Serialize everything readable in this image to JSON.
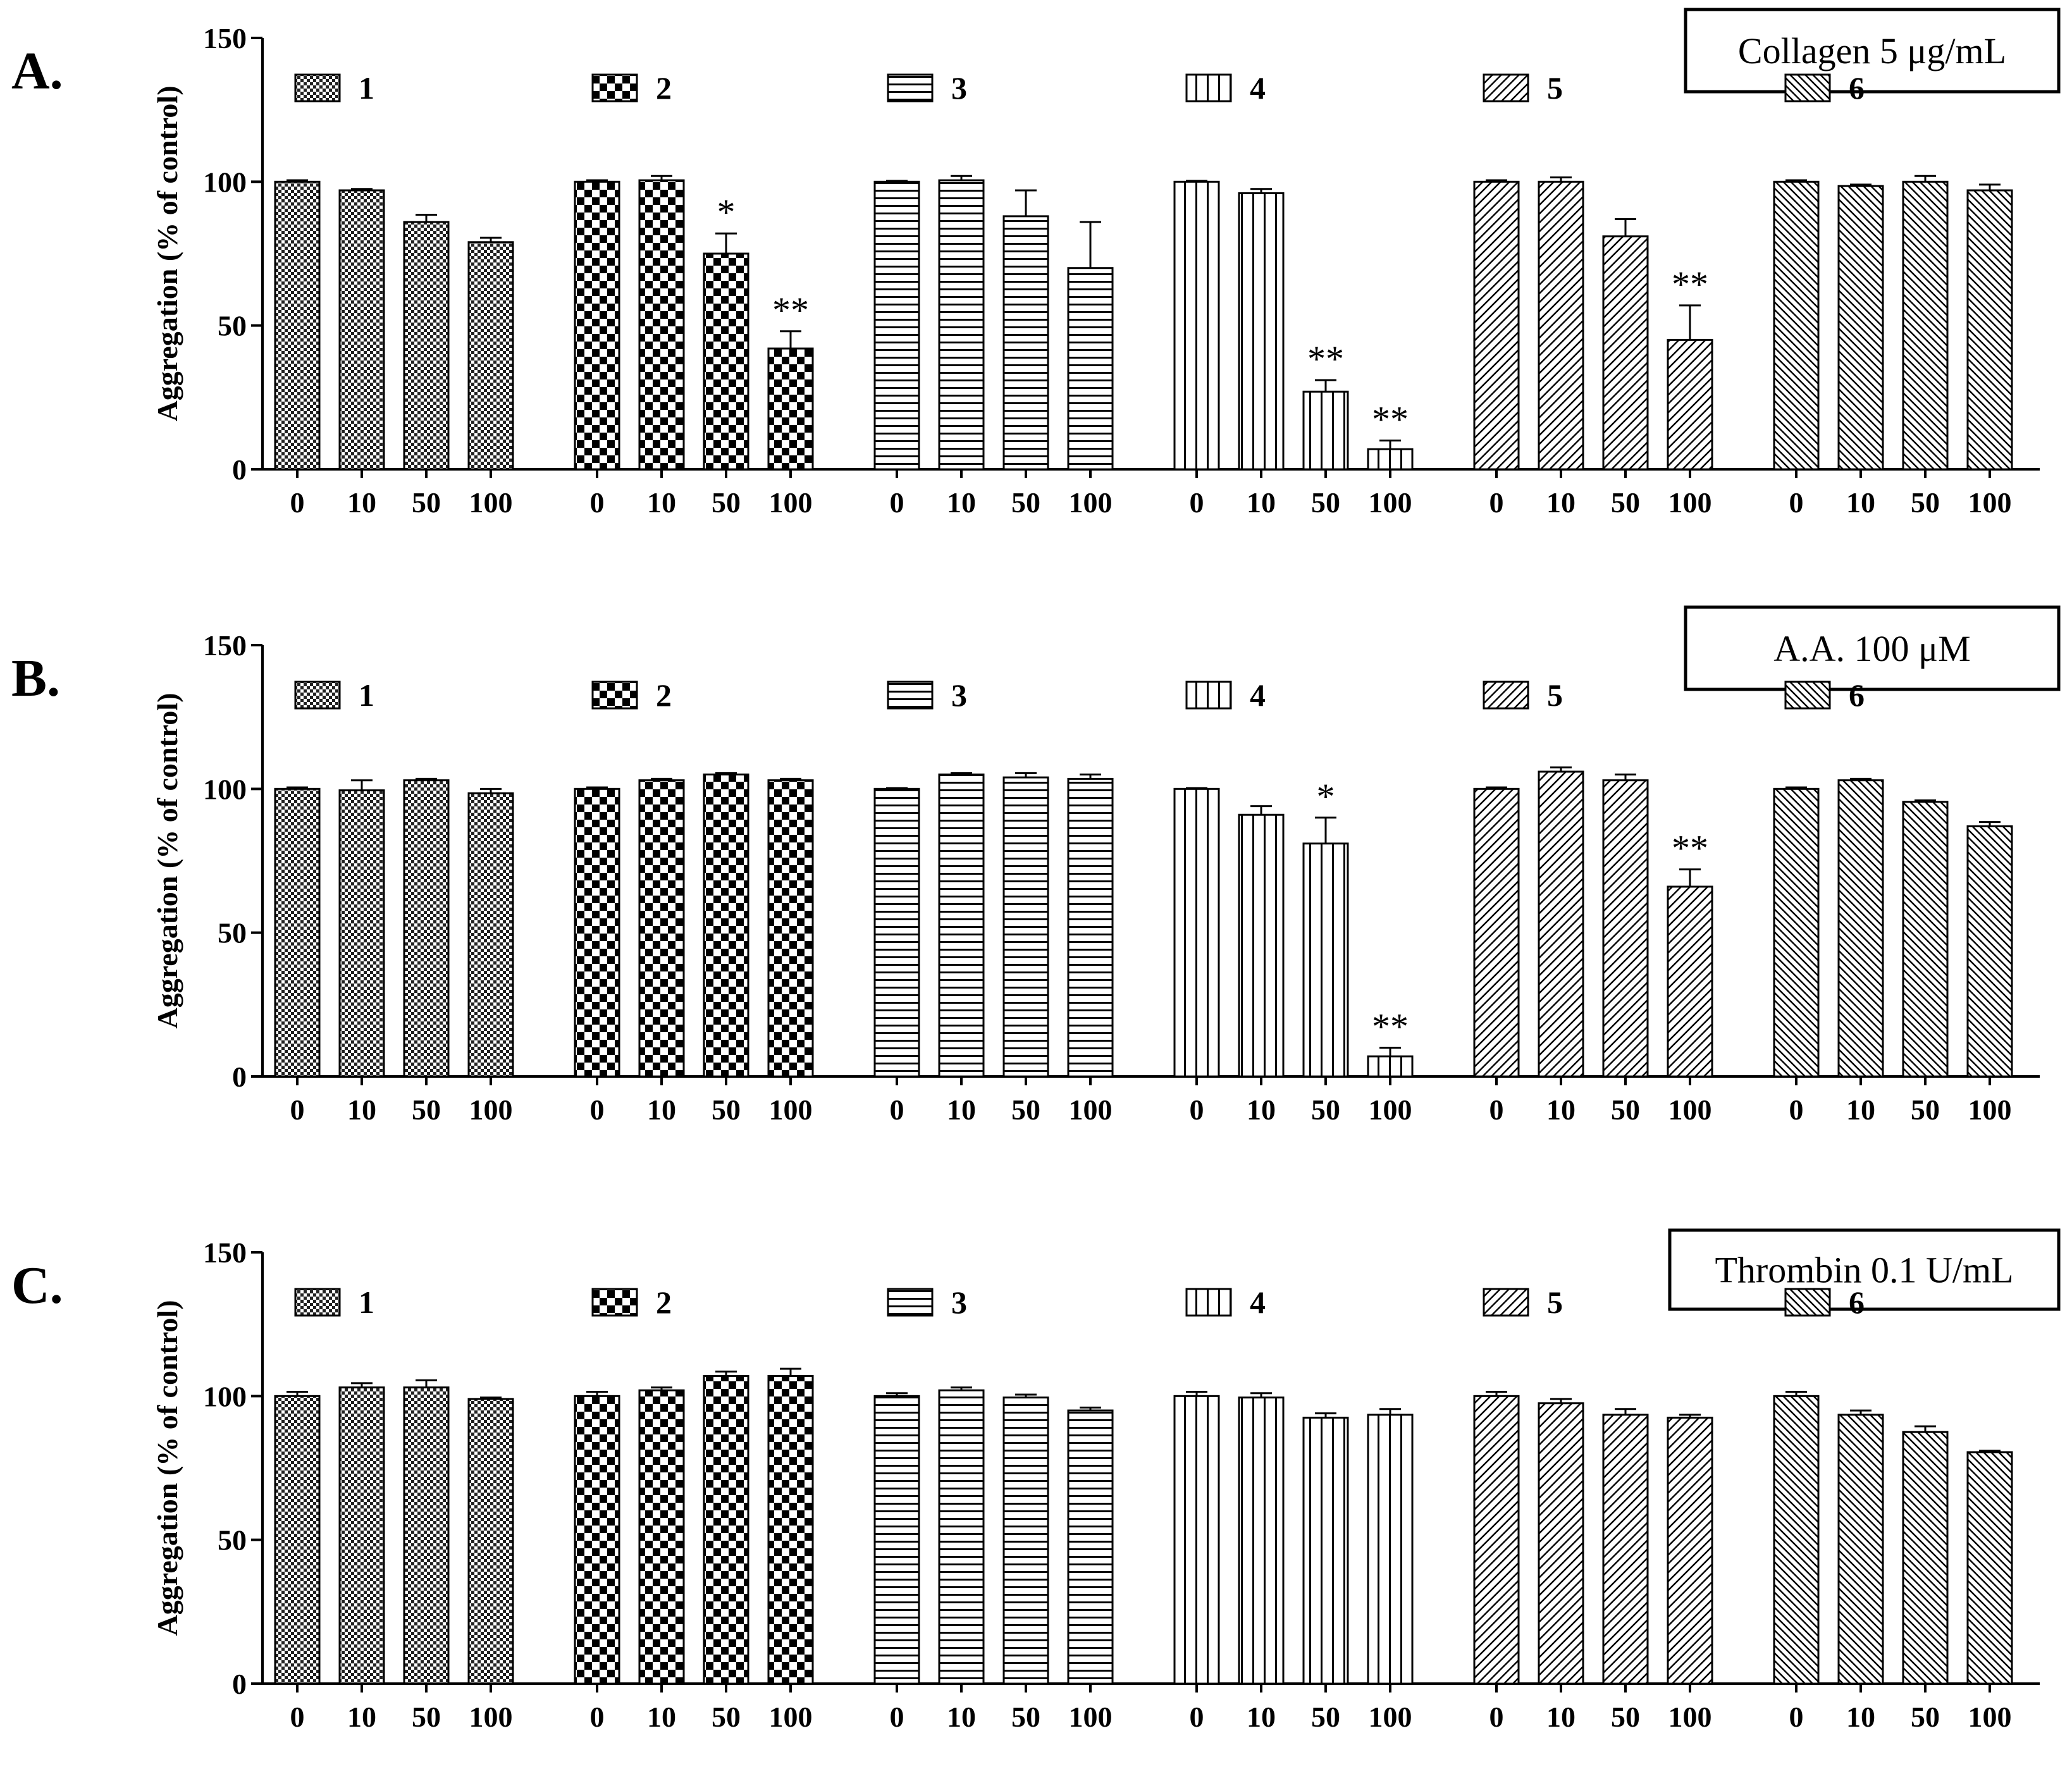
{
  "chart_data": [
    {
      "type": "bar",
      "panel": "A.",
      "condition": "Collagen 5 μg/mL",
      "ylabel": "Aggregation (% of control)",
      "ylim": [
        0,
        150
      ],
      "yticks": [
        0,
        50,
        100,
        150
      ],
      "categories": [
        "0",
        "10",
        "50",
        "100"
      ],
      "series": [
        {
          "name": "1",
          "values": [
            100,
            97,
            86,
            79
          ],
          "errors": [
            0.5,
            0.5,
            2.5,
            1.5
          ],
          "sig": [
            "",
            "",
            "",
            ""
          ]
        },
        {
          "name": "2",
          "values": [
            100,
            100.5,
            75,
            42
          ],
          "errors": [
            0.5,
            1.5,
            7,
            6
          ],
          "sig": [
            "",
            "",
            "*",
            "**"
          ]
        },
        {
          "name": "3",
          "values": [
            100,
            100.5,
            88,
            70
          ],
          "errors": [
            0.3,
            1.5,
            9,
            16
          ],
          "sig": [
            "",
            "",
            "",
            ""
          ]
        },
        {
          "name": "4",
          "values": [
            100,
            96,
            27,
            7
          ],
          "errors": [
            0.3,
            1.5,
            4,
            3
          ],
          "sig": [
            "",
            "",
            "**",
            "**"
          ]
        },
        {
          "name": "5",
          "values": [
            100,
            100,
            81,
            45
          ],
          "errors": [
            0.5,
            1.5,
            6,
            12
          ],
          "sig": [
            "",
            "",
            "",
            "**"
          ]
        },
        {
          "name": "6",
          "values": [
            100,
            98.5,
            100,
            97
          ],
          "errors": [
            0.5,
            0.5,
            2,
            2
          ],
          "sig": [
            "",
            "",
            "",
            ""
          ]
        }
      ]
    },
    {
      "type": "bar",
      "panel": "B.",
      "condition": "A.A. 100 μM",
      "ylabel": "Aggregation (% of control)",
      "ylim": [
        0,
        150
      ],
      "yticks": [
        0,
        50,
        100,
        150
      ],
      "categories": [
        "0",
        "10",
        "50",
        "100"
      ],
      "series": [
        {
          "name": "1",
          "values": [
            100,
            99.5,
            103,
            98.5
          ],
          "errors": [
            0.5,
            3.5,
            0.5,
            1.5
          ],
          "sig": [
            "",
            "",
            "",
            ""
          ]
        },
        {
          "name": "2",
          "values": [
            100,
            103,
            105,
            103
          ],
          "errors": [
            0.5,
            0.5,
            0.5,
            0.5
          ],
          "sig": [
            "",
            "",
            "",
            ""
          ]
        },
        {
          "name": "3",
          "values": [
            100,
            105,
            104,
            103.5
          ],
          "errors": [
            0.3,
            0.5,
            1.5,
            1.5
          ],
          "sig": [
            "",
            "",
            "",
            ""
          ]
        },
        {
          "name": "4",
          "values": [
            100,
            91,
            81,
            7
          ],
          "errors": [
            0.3,
            3,
            9,
            3
          ],
          "sig": [
            "",
            "",
            "*",
            "**"
          ]
        },
        {
          "name": "5",
          "values": [
            100,
            106,
            103,
            66
          ],
          "errors": [
            0.5,
            1.5,
            2,
            6
          ],
          "sig": [
            "",
            "",
            "",
            "**"
          ]
        },
        {
          "name": "6",
          "values": [
            100,
            103,
            95.5,
            87
          ],
          "errors": [
            0.5,
            0.5,
            0.5,
            1.5
          ],
          "sig": [
            "",
            "",
            "",
            ""
          ]
        }
      ]
    },
    {
      "type": "bar",
      "panel": "C.",
      "condition": "Thrombin 0.1 U/mL",
      "ylabel": "Aggregation (% of control)",
      "ylim": [
        0,
        150
      ],
      "yticks": [
        0,
        50,
        100,
        150
      ],
      "categories": [
        "0",
        "10",
        "50",
        "100"
      ],
      "series": [
        {
          "name": "1",
          "values": [
            100,
            103,
            103,
            99
          ],
          "errors": [
            1.5,
            1.5,
            2.5,
            0.5
          ],
          "sig": [
            "",
            "",
            "",
            ""
          ]
        },
        {
          "name": "2",
          "values": [
            100,
            102,
            107,
            107
          ],
          "errors": [
            1.5,
            1,
            1.5,
            2.5
          ],
          "sig": [
            "",
            "",
            "",
            ""
          ]
        },
        {
          "name": "3",
          "values": [
            100,
            102,
            99.5,
            95
          ],
          "errors": [
            1,
            1,
            1,
            1
          ],
          "sig": [
            "",
            "",
            "",
            ""
          ]
        },
        {
          "name": "4",
          "values": [
            100,
            99.5,
            92.5,
            93.5
          ],
          "errors": [
            1.5,
            1.5,
            1.5,
            2
          ],
          "sig": [
            "",
            "",
            "",
            ""
          ]
        },
        {
          "name": "5",
          "values": [
            100,
            97.5,
            93.5,
            92.5
          ],
          "errors": [
            1.5,
            1.5,
            2,
            1
          ],
          "sig": [
            "",
            "",
            "",
            ""
          ]
        },
        {
          "name": "6",
          "values": [
            100,
            93.5,
            87.5,
            80.5
          ],
          "errors": [
            1.5,
            1.5,
            2,
            0.5
          ],
          "sig": [
            "",
            "",
            "",
            ""
          ]
        }
      ]
    }
  ]
}
